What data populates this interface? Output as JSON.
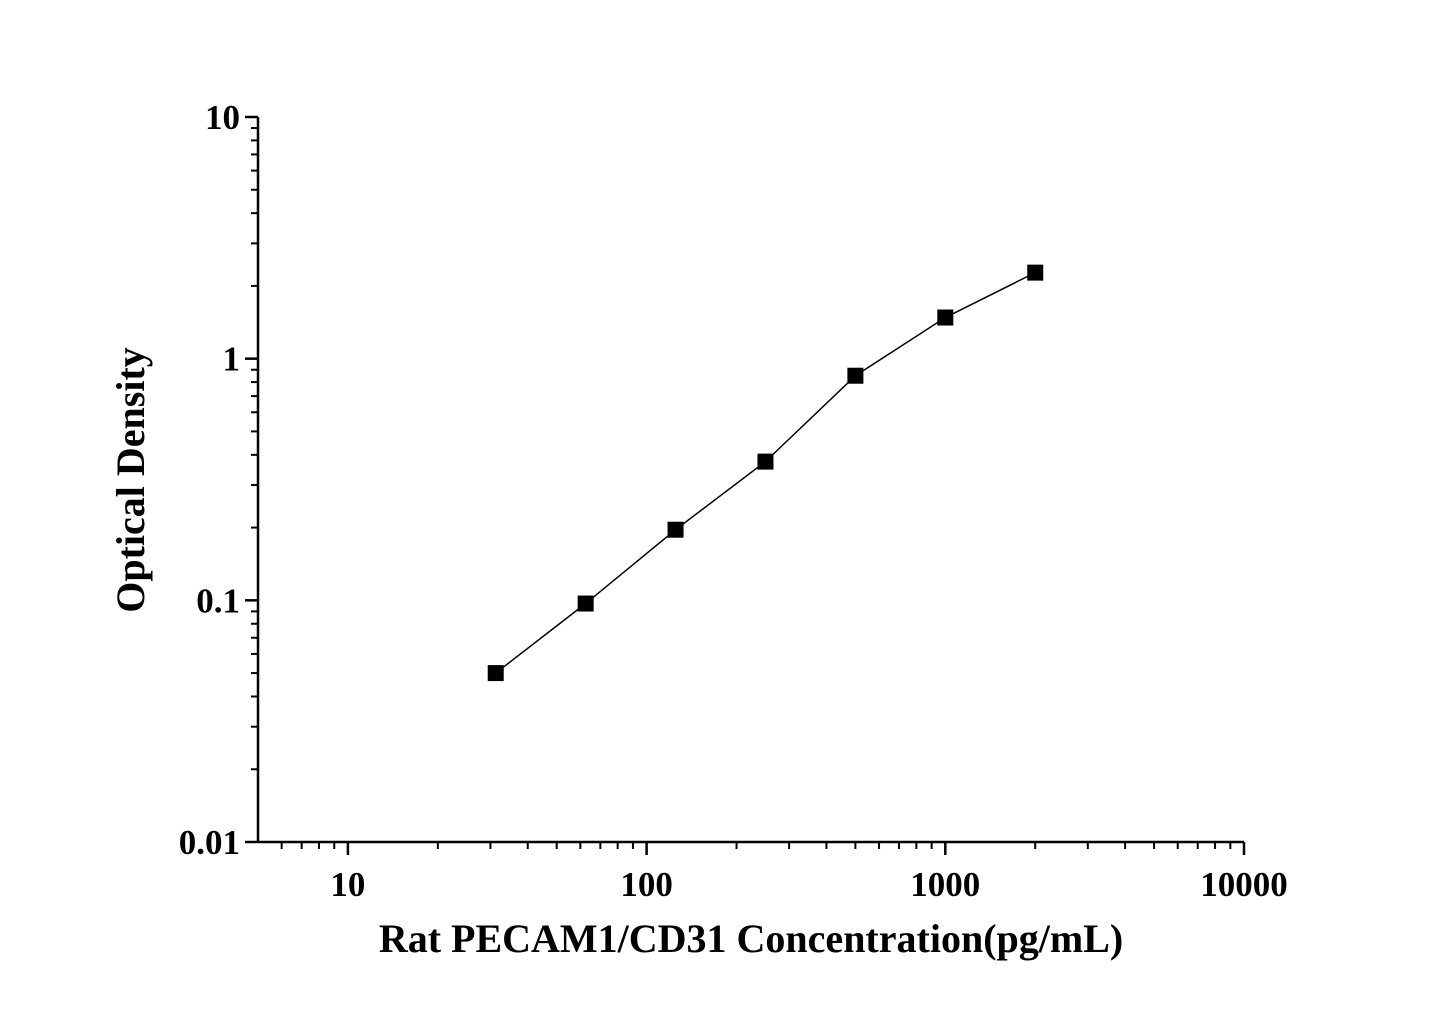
{
  "chart_data": {
    "type": "scatter",
    "x_label": "Rat PECAM1/CD31 Concentration(pg/mL)",
    "y_label": "Optical Density",
    "x": [
      31.25,
      62.5,
      125,
      250,
      500,
      1000,
      2000
    ],
    "series": [
      {
        "color": "#000000",
        "values": [
          0.05,
          0.097,
          0.196,
          0.375,
          0.85,
          1.48,
          2.27
        ]
      }
    ],
    "xlim": [
      5,
      10000
    ],
    "ylim": [
      0.01,
      10
    ],
    "xticks": [
      10,
      100,
      1000,
      10000
    ],
    "yticks": [
      0.01,
      0.1,
      1,
      10
    ],
    "x_log": true,
    "y_log": true,
    "minor_ticks": true,
    "connect_points": true,
    "grid": false
  }
}
